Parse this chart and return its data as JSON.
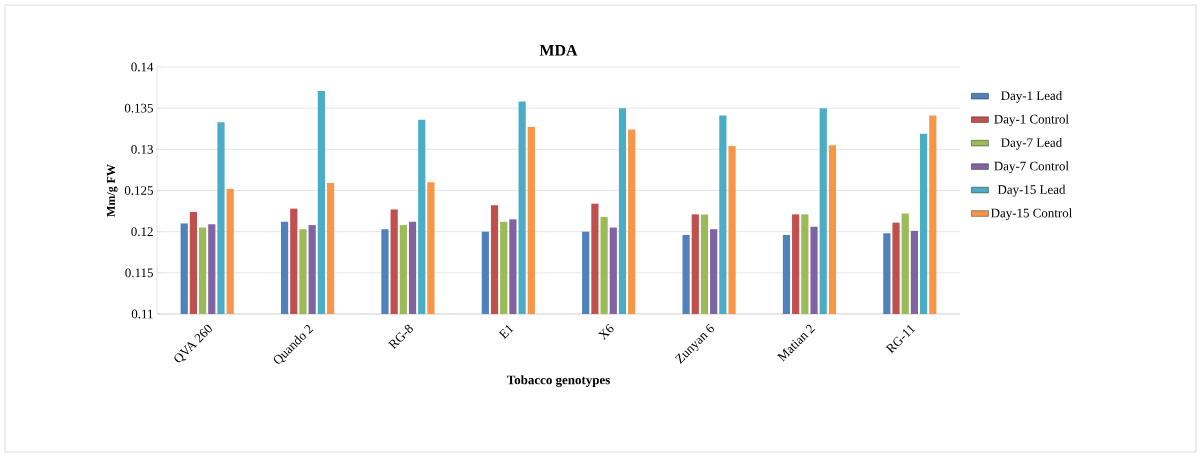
{
  "chart_data": {
    "type": "bar",
    "title": "MDA",
    "xlabel": "Tobacco genotypes",
    "ylabel": "Mm/g FW",
    "categories": [
      "QVA 260",
      "Quando 2",
      "RG-8",
      "E1",
      "X6",
      "Zunyan 6",
      "Matian 2",
      "RG-11"
    ],
    "series": [
      {
        "name": "Day-1 Lead",
        "color": "#4f81bd",
        "values": [
          0.121,
          0.1212,
          0.1203,
          0.12,
          0.12,
          0.1196,
          0.1196,
          0.1198
        ]
      },
      {
        "name": "Day-1 Control",
        "color": "#c0504d",
        "values": [
          0.1224,
          0.1228,
          0.1227,
          0.1232,
          0.1234,
          0.1221,
          0.1221,
          0.1211
        ]
      },
      {
        "name": "Day-7 Lead",
        "color": "#9bbb59",
        "values": [
          0.1205,
          0.1203,
          0.1208,
          0.1212,
          0.1218,
          0.1221,
          0.1221,
          0.1222
        ]
      },
      {
        "name": "Day-7 Control",
        "color": "#8064a2",
        "values": [
          0.1209,
          0.1208,
          0.1212,
          0.1215,
          0.1205,
          0.1203,
          0.1206,
          0.1201
        ]
      },
      {
        "name": "Day-15 Lead",
        "color": "#4bacc6",
        "values": [
          0.1333,
          0.1371,
          0.1336,
          0.1358,
          0.135,
          0.1341,
          0.135,
          0.1319
        ]
      },
      {
        "name": "Day-15 Control",
        "color": "#f79646",
        "values": [
          0.1252,
          0.1259,
          0.126,
          0.1327,
          0.1324,
          0.1304,
          0.1305,
          0.1341
        ]
      }
    ],
    "ylim": [
      0.11,
      0.14
    ],
    "yticks": [
      0.11,
      0.115,
      0.12,
      0.125,
      0.13,
      0.135,
      0.14
    ],
    "grid": "y",
    "legend": "right"
  }
}
